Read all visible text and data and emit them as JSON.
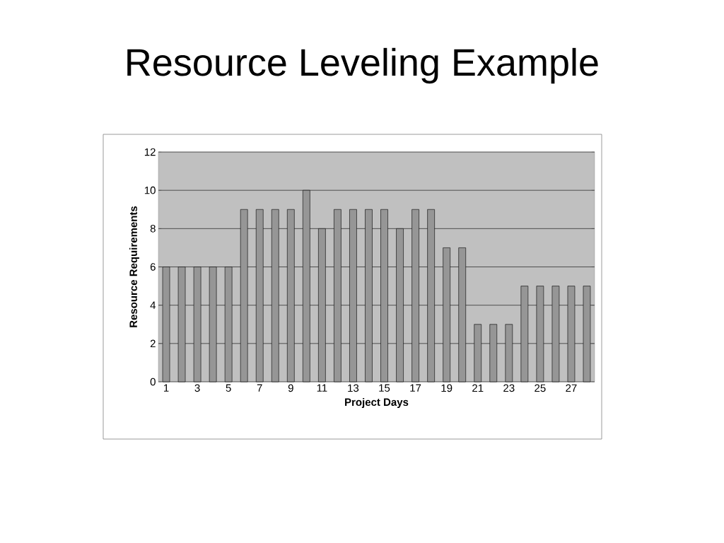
{
  "chart_data": {
    "type": "bar",
    "title": "Resource Leveling Example",
    "xlabel": "Project Days",
    "ylabel": "Resource Requirements",
    "categories": [
      "1",
      null,
      "3",
      null,
      "5",
      null,
      "7",
      null,
      "9",
      null,
      "11",
      null,
      "13",
      null,
      "15",
      null,
      "17",
      null,
      "19",
      null,
      "21",
      null,
      "23",
      null,
      "25",
      null,
      "27",
      null
    ],
    "values": [
      6,
      6,
      6,
      6,
      6,
      9,
      9,
      9,
      9,
      10,
      8,
      9,
      9,
      9,
      9,
      8,
      9,
      9,
      7,
      7,
      3,
      3,
      3,
      5,
      5,
      5,
      5,
      5
    ],
    "color": "#969696",
    "ylim": [
      0,
      12
    ],
    "yticks": [
      0,
      2,
      4,
      6,
      8,
      10,
      12
    ],
    "grid": "y"
  }
}
